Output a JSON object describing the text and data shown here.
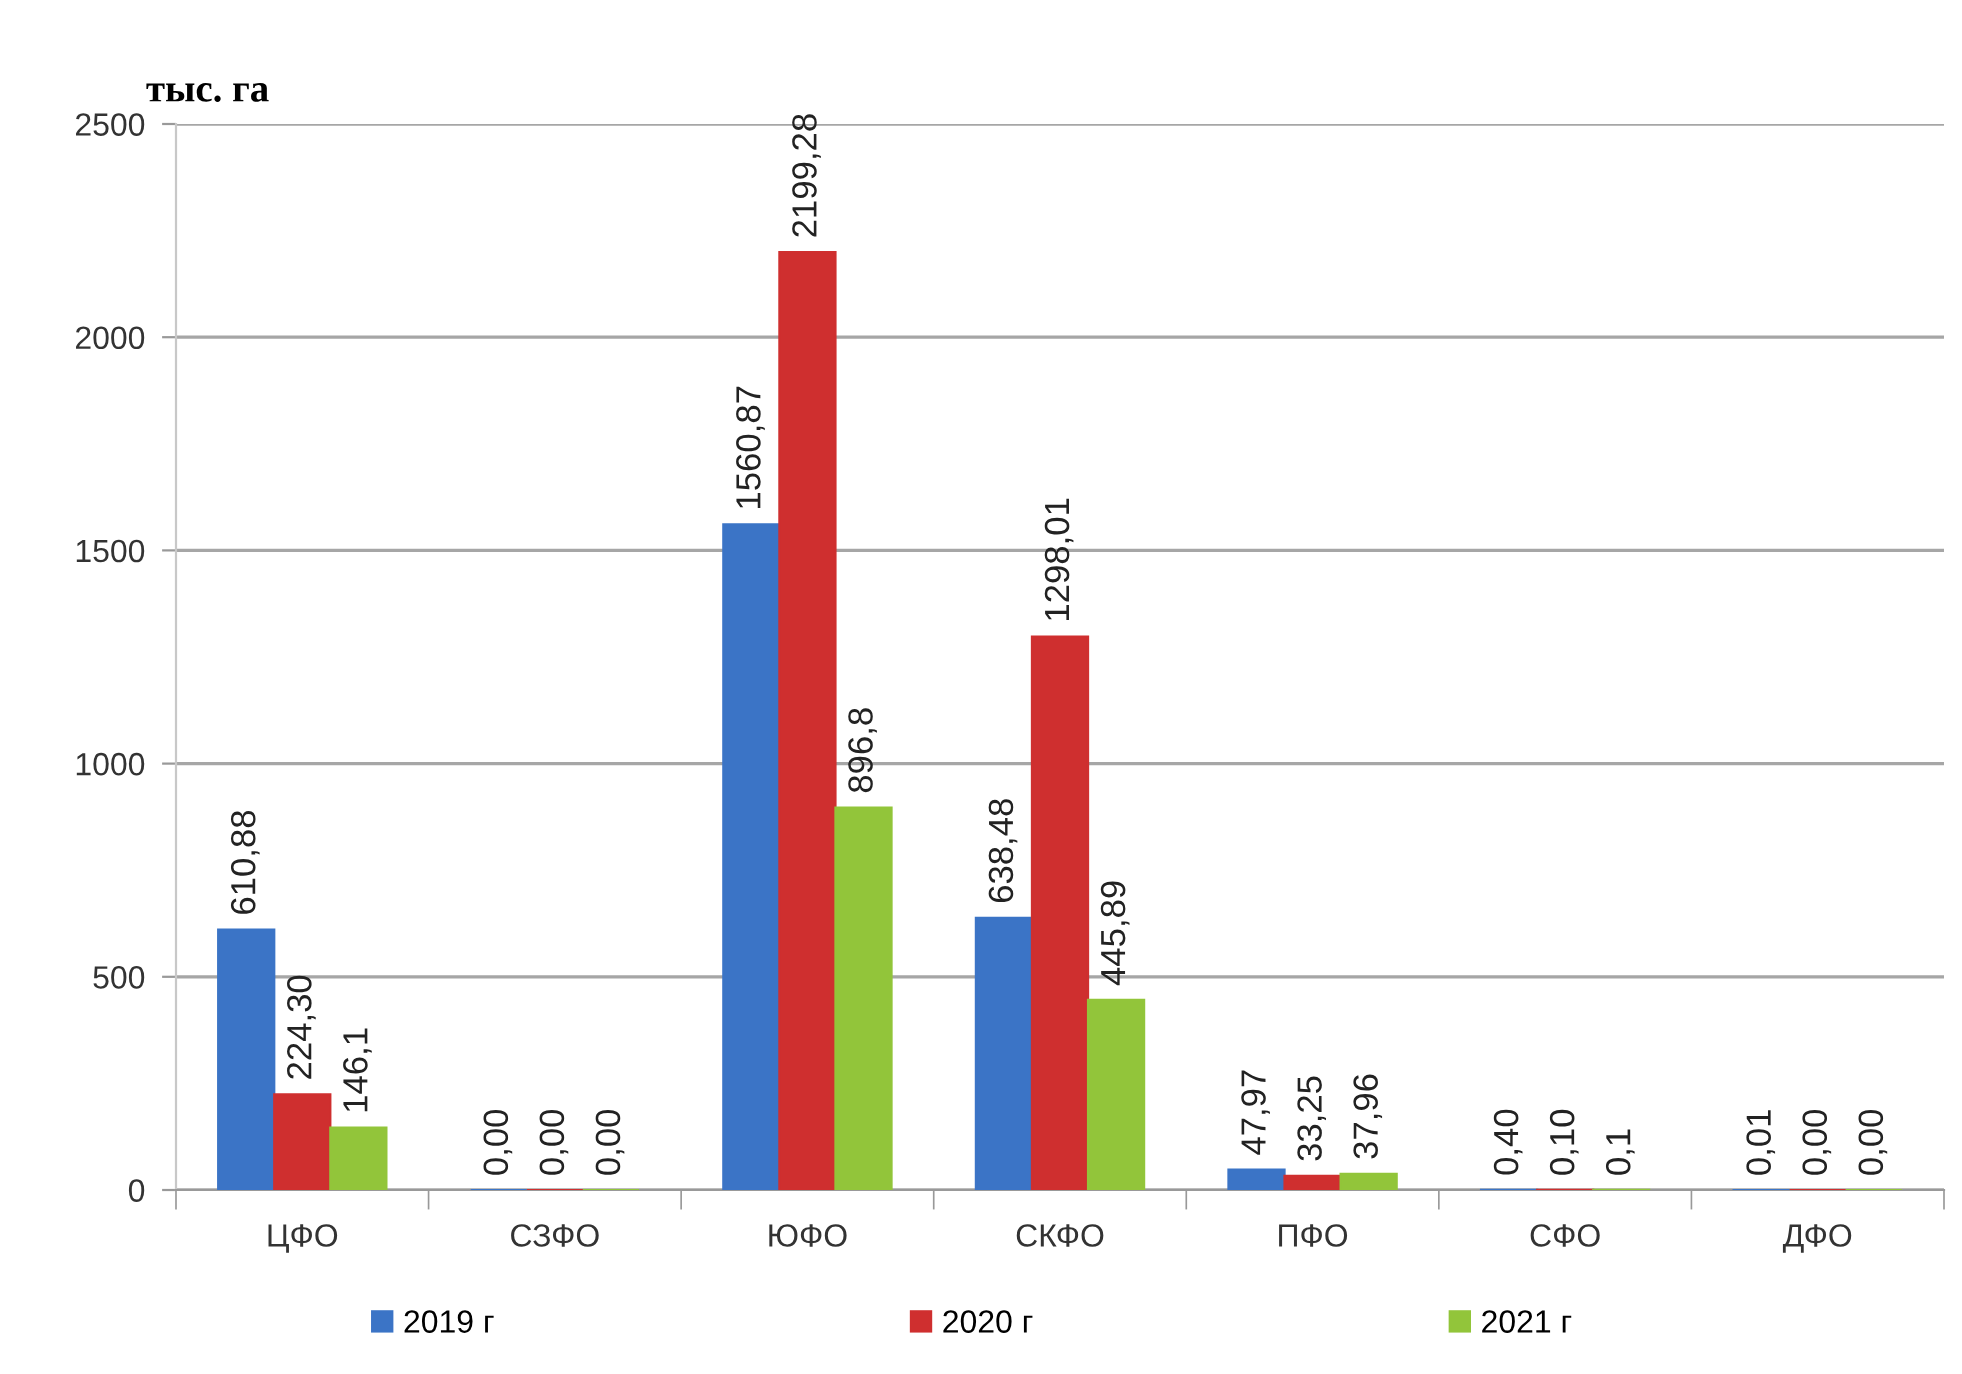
{
  "chart_data": {
    "type": "bar",
    "ylabel": "тыс. га",
    "categories": [
      "ЦФО",
      "СЗФО",
      "ЮФО",
      "СКФО",
      "ПФО",
      "СФО",
      "ДФО"
    ],
    "series": [
      {
        "name": "2019 г",
        "color": "#3b74c6",
        "values": [
          610.88,
          0.0,
          1560.87,
          638.48,
          47.97,
          0.4,
          0.01
        ],
        "value_labels": [
          "610,88",
          "0,00",
          "1560,87",
          "638,48",
          "47,97",
          "0,40",
          "0,01"
        ]
      },
      {
        "name": "2020 г",
        "color": "#cf2f2f",
        "values": [
          224.3,
          0.0,
          2199.28,
          1298.01,
          33.25,
          0.1,
          0.0
        ],
        "value_labels": [
          "224,30",
          "0,00",
          "2199,28",
          "1298,01",
          "33,25",
          "0,10",
          "0,00"
        ]
      },
      {
        "name": "2021 г",
        "color": "#92c53a",
        "values": [
          146.1,
          0.0,
          896.8,
          445.89,
          37.96,
          0.1,
          0.0
        ],
        "value_labels": [
          "146,1",
          "0,00",
          "896,8",
          "445,89",
          "37,96",
          "0,1",
          "0,00"
        ]
      }
    ],
    "ylim": [
      0,
      2500
    ],
    "yticks": [
      0,
      500,
      1000,
      1500,
      2000,
      2500
    ],
    "grid": "y",
    "legend": "bottom"
  }
}
